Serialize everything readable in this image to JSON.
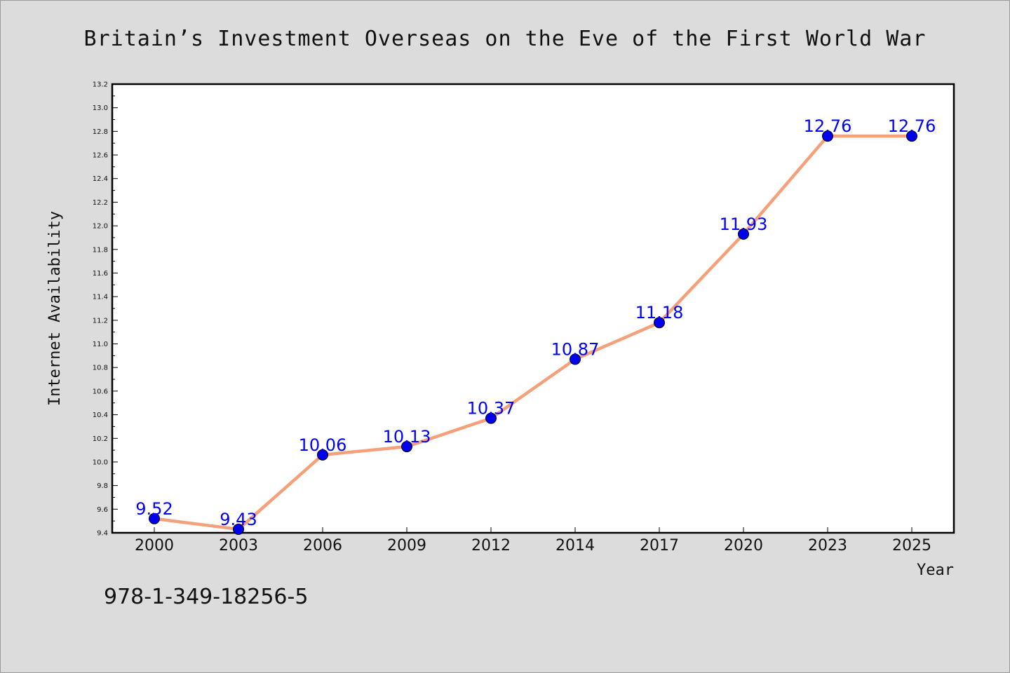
{
  "page": {
    "footer_code": "978-1-349-18256-5"
  },
  "colors": {
    "background": "#dcdcdc",
    "plot_background": "#ffffff",
    "line": "#f4a07a",
    "marker": "#0000ee",
    "data_label": "#0000ff"
  },
  "chart_data": {
    "type": "line",
    "title": "Britain’s Investment Overseas on the Eve of the First World War",
    "xlabel": "Year",
    "ylabel": "Internet Availability",
    "categories": [
      "2000",
      "2003",
      "2006",
      "2009",
      "2012",
      "2014",
      "2017",
      "2020",
      "2023",
      "2025"
    ],
    "series": [
      {
        "values": [
          9.52,
          9.43,
          10.06,
          10.13,
          10.37,
          10.87,
          11.18,
          11.93,
          12.76,
          12.76
        ],
        "data_labels": [
          "9.52",
          "9.43",
          "10.06",
          "10.13",
          "10.37",
          "10.87",
          "11.18",
          "11.93",
          "12.76",
          "12.76"
        ]
      }
    ],
    "ylim": [
      9.4,
      13.2
    ],
    "yticks": [
      "9.4",
      "9.6",
      "9.8",
      "10.0",
      "10.2",
      "10.4",
      "10.6",
      "10.8",
      "11.0",
      "11.2",
      "11.4",
      "11.6",
      "11.8",
      "12.0",
      "12.2",
      "12.4",
      "12.6",
      "12.8",
      "13.0",
      "13.2"
    ],
    "grid": false,
    "legend": "none"
  }
}
